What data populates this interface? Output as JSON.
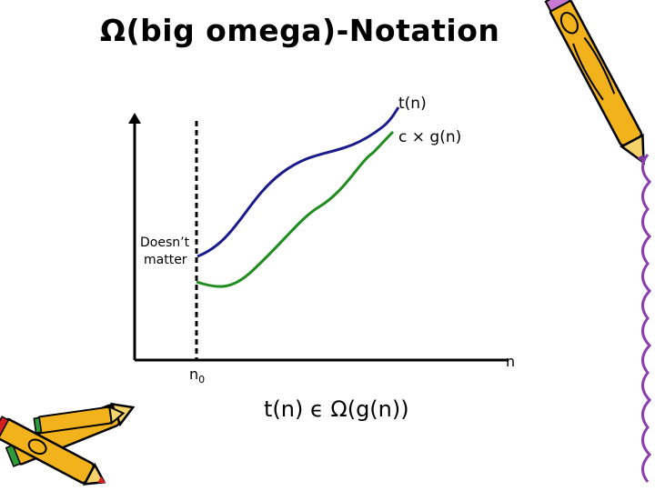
{
  "slide": {
    "title": "Ω(big omega)-Notation",
    "formula": "t(n) ϵ Ω(g(n))"
  },
  "diagram": {
    "curve_upper_label": "t(n)",
    "curve_lower_label": "c × g(n)",
    "region_label_line1": "Doesn’t",
    "region_label_line2": "matter",
    "x_axis_label": "n",
    "threshold_label": "n",
    "threshold_subscript": "0"
  },
  "colors": {
    "upper_curve": "#1a1a8c",
    "lower_curve": "#1f8c1f",
    "axis": "#000000"
  },
  "decorations": [
    "crayon-icon",
    "crayon-group-icon",
    "squiggle-border"
  ]
}
